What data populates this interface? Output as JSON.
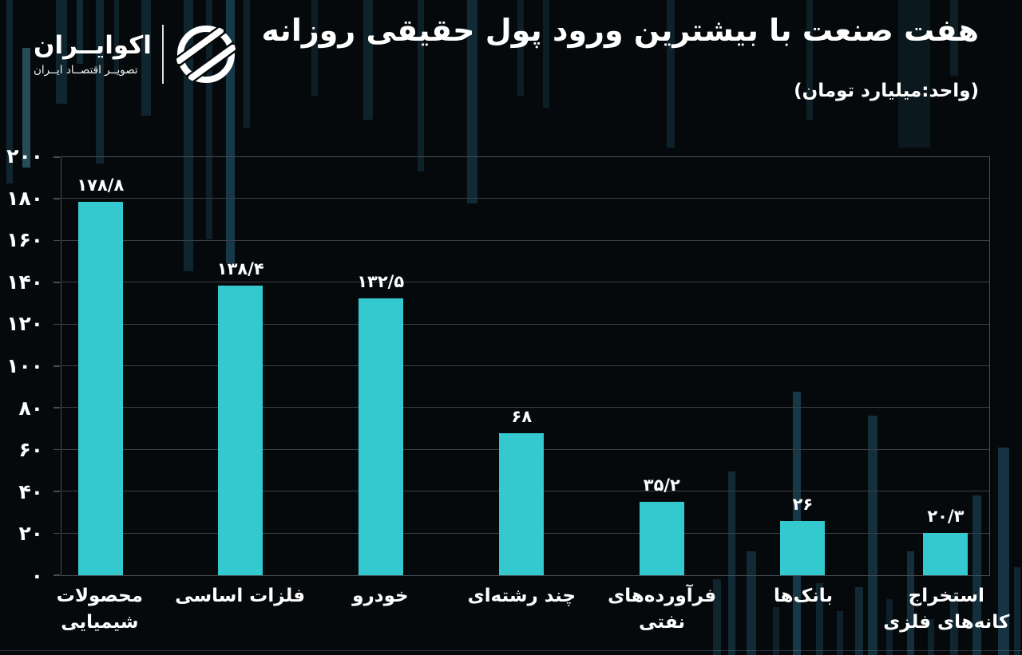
{
  "page": {
    "background": "#06090b",
    "text_color": "#ffffff"
  },
  "brand": {
    "name": "اکوایــران",
    "tagline": "تصویــر اقتصــاد ایــران"
  },
  "header": {
    "title": "هفت صنعت با بیشترین ورود پول حقیقی روزانه",
    "unit_note": "(واحد:میلیارد تومان)"
  },
  "chart_data": {
    "type": "bar",
    "title": "هفت صنعت با بیشترین ورود پول حقیقی روزانه",
    "unit": "میلیارد تومان",
    "categories": [
      "محصولات شیمیایی",
      "فلزات اساسی",
      "خودرو",
      "چند رشته‌ای",
      "فرآورده‌های نفتی",
      "بانک‌ها",
      "استخراج کانه‌های فلزی"
    ],
    "values": [
      178.8,
      138.4,
      132.5,
      68,
      35.2,
      26,
      20.3
    ],
    "value_labels": [
      "۱۷۸/۸",
      "۱۳۸/۴",
      "۱۳۲/۵",
      "۶۸",
      "۳۵/۲",
      "۲۶",
      "۲۰/۳"
    ],
    "y_tick_values": [
      200,
      180,
      160,
      140,
      120,
      100,
      80,
      60,
      40,
      20,
      0
    ],
    "y_tick_labels": [
      "۲۰۰",
      "۱۸۰",
      "۱۶۰",
      "۱۴۰",
      "۱۲۰",
      "۱۰۰",
      "۸۰",
      "۶۰",
      "۴۰",
      "۲۰",
      "۰"
    ],
    "ylim": [
      0,
      200
    ],
    "grid": true,
    "legend": false,
    "bar_color": "#34c9ce",
    "grid_color": "#3a4045",
    "axis_color": "#474d52",
    "label_color": "#ffffff"
  }
}
